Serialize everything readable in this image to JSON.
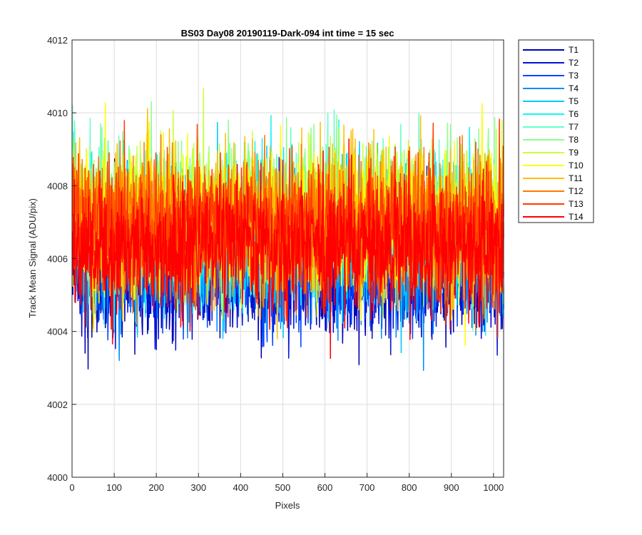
{
  "chart_data": {
    "type": "line",
    "title": "BS03 Day08 20190119-Dark-094 int time = 15 sec",
    "xlabel": "Pixels",
    "ylabel": "Track Mean Signal (ADU/pix)",
    "xlim": [
      0,
      1024
    ],
    "ylim": [
      4000,
      4012
    ],
    "xticks": [
      0,
      100,
      200,
      300,
      400,
      500,
      600,
      700,
      800,
      900,
      1000
    ],
    "yticks": [
      4000,
      4002,
      4004,
      4006,
      4008,
      4010,
      4012
    ],
    "grid": true,
    "legend_position": "outside top-right",
    "points_per_series": 1024,
    "series": [
      {
        "name": "T1",
        "color": "#0000b4",
        "mean": 4005.6,
        "spread": 0.85
      },
      {
        "name": "T2",
        "color": "#0012d4",
        "mean": 4005.7,
        "spread": 0.85
      },
      {
        "name": "T3",
        "color": "#0046ff",
        "mean": 4005.9,
        "spread": 0.85
      },
      {
        "name": "T4",
        "color": "#008cff",
        "mean": 4006.2,
        "spread": 0.9
      },
      {
        "name": "T5",
        "color": "#00c8ff",
        "mean": 4006.5,
        "spread": 0.95
      },
      {
        "name": "T6",
        "color": "#14f5f5",
        "mean": 4006.8,
        "spread": 0.95
      },
      {
        "name": "T7",
        "color": "#64ffc8",
        "mean": 4007.0,
        "spread": 0.95
      },
      {
        "name": "T8",
        "color": "#8cff8c",
        "mean": 4007.2,
        "spread": 0.95
      },
      {
        "name": "T9",
        "color": "#c8ff3c",
        "mean": 4007.1,
        "spread": 0.95
      },
      {
        "name": "T10",
        "color": "#ffff00",
        "mean": 4006.9,
        "spread": 0.95
      },
      {
        "name": "T11",
        "color": "#ffbe00",
        "mean": 4007.0,
        "spread": 0.95
      },
      {
        "name": "T12",
        "color": "#ff7800",
        "mean": 4006.9,
        "spread": 0.9
      },
      {
        "name": "T13",
        "color": "#ff3c00",
        "mean": 4006.8,
        "spread": 0.9
      },
      {
        "name": "T14",
        "color": "#ff0000",
        "mean": 4006.3,
        "spread": 0.9
      }
    ]
  }
}
